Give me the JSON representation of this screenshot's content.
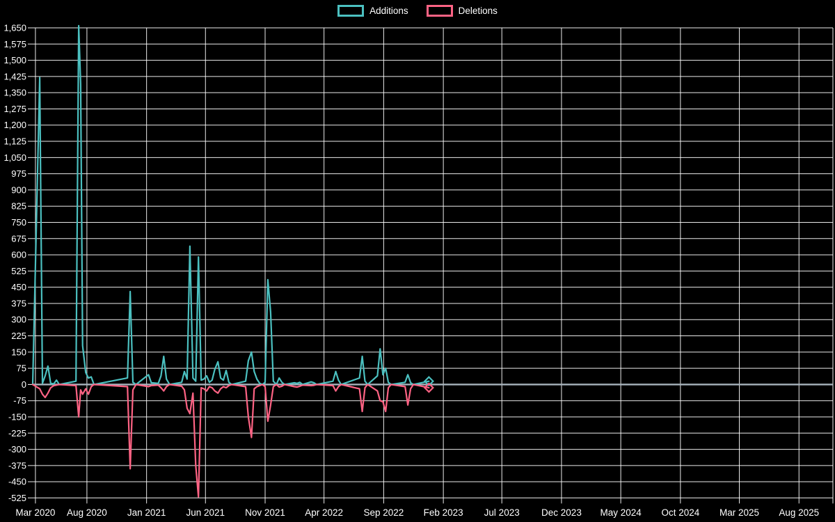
{
  "legend": {
    "additions_label": "Additions",
    "deletions_label": "Deletions"
  },
  "colors": {
    "additions": "#4bc0c0",
    "deletions": "#ff6384",
    "grid": "#ffffff",
    "zero_line": "#a8b4be",
    "background": "#000000",
    "text": "#ffffff"
  },
  "chart_data": {
    "type": "line",
    "title": "",
    "legend_position": "top-center",
    "grid": true,
    "x_axis": {
      "start": "2020-03-15",
      "end": "2025-10-27",
      "ticks": [
        {
          "label": "Mar 2020",
          "date": "2020-03-22"
        },
        {
          "label": "Aug 2020",
          "date": "2020-08-01"
        },
        {
          "label": "Jan 2021",
          "date": "2021-01-01"
        },
        {
          "label": "Jun 2021",
          "date": "2021-06-01"
        },
        {
          "label": "Nov 2021",
          "date": "2021-11-01"
        },
        {
          "label": "Apr 2022",
          "date": "2022-04-01"
        },
        {
          "label": "Sep 2022",
          "date": "2022-09-01"
        },
        {
          "label": "Feb 2023",
          "date": "2023-02-01"
        },
        {
          "label": "Jul 2023",
          "date": "2023-07-01"
        },
        {
          "label": "Dec 2023",
          "date": "2023-12-01"
        },
        {
          "label": "May 2024",
          "date": "2024-05-01"
        },
        {
          "label": "Oct 2024",
          "date": "2024-10-01"
        },
        {
          "label": "Mar 2025",
          "date": "2025-03-01"
        },
        {
          "label": "Aug 2025",
          "date": "2025-08-01"
        },
        {
          "label": "",
          "date": "2025-10-27"
        }
      ]
    },
    "y_axis": {
      "min": -525,
      "max": 1650,
      "step": 75,
      "tick_labels": [
        "1,650",
        "1,575",
        "1,500",
        "1,425",
        "1,350",
        "1,275",
        "1,200",
        "1,125",
        "1,050",
        "975",
        "900",
        "825",
        "750",
        "675",
        "600",
        "525",
        "450",
        "375",
        "300",
        "225",
        "150",
        "75",
        "0",
        "-75",
        "-150",
        "-225",
        "-300",
        "-375",
        "-450",
        "-525"
      ]
    },
    "x": [
      "2020-03-15",
      "2020-04-02",
      "2020-04-09",
      "2020-04-16",
      "2020-04-23",
      "2020-04-30",
      "2020-05-08",
      "2020-05-15",
      "2020-05-22",
      "2020-07-04",
      "2020-07-11",
      "2020-07-16",
      "2020-07-21",
      "2020-07-29",
      "2020-08-05",
      "2020-08-12",
      "2020-08-19",
      "2020-11-13",
      "2020-11-20",
      "2020-11-27",
      "2020-12-05",
      "2021-01-06",
      "2021-01-13",
      "2021-01-31",
      "2021-02-07",
      "2021-02-14",
      "2021-02-21",
      "2021-03-01",
      "2021-04-01",
      "2021-04-08",
      "2021-04-15",
      "2021-04-22",
      "2021-04-30",
      "2021-05-07",
      "2021-05-14",
      "2021-05-21",
      "2021-05-28",
      "2021-06-04",
      "2021-06-11",
      "2021-06-18",
      "2021-06-25",
      "2021-07-03",
      "2021-07-10",
      "2021-07-17",
      "2021-07-24",
      "2021-07-31",
      "2021-08-07",
      "2021-09-12",
      "2021-09-19",
      "2021-09-27",
      "2021-10-04",
      "2021-10-11",
      "2021-10-18",
      "2021-10-25",
      "2021-11-01",
      "2021-11-08",
      "2021-11-15",
      "2021-11-22",
      "2021-11-30",
      "2021-12-07",
      "2021-12-14",
      "2021-12-21",
      "2022-01-15",
      "2022-01-22",
      "2022-01-29",
      "2022-02-05",
      "2022-02-27",
      "2022-03-06",
      "2022-03-13",
      "2022-04-24",
      "2022-05-01",
      "2022-05-08",
      "2022-05-15",
      "2022-07-01",
      "2022-07-08",
      "2022-07-15",
      "2022-07-22",
      "2022-08-16",
      "2022-08-23",
      "2022-08-30",
      "2022-09-06",
      "2022-09-13",
      "2022-09-20",
      "2022-10-26",
      "2022-11-02",
      "2022-11-09",
      "2022-11-16",
      "2022-12-26"
    ],
    "series": [
      {
        "name": "Additions",
        "values": [
          0,
          1420,
          5,
          40,
          85,
          5,
          3,
          20,
          0,
          15,
          1660,
          1390,
          180,
          55,
          30,
          35,
          0,
          30,
          430,
          10,
          0,
          45,
          8,
          5,
          40,
          130,
          25,
          0,
          10,
          60,
          25,
          640,
          30,
          15,
          590,
          20,
          25,
          40,
          10,
          20,
          70,
          105,
          30,
          20,
          65,
          10,
          0,
          15,
          110,
          150,
          60,
          25,
          5,
          0,
          10,
          485,
          335,
          15,
          0,
          30,
          10,
          0,
          8,
          5,
          10,
          0,
          12,
          8,
          0,
          15,
          60,
          20,
          0,
          30,
          130,
          15,
          0,
          40,
          165,
          45,
          75,
          10,
          0,
          10,
          45,
          8,
          0,
          15
        ]
      },
      {
        "name": "Deletions",
        "values": [
          0,
          -20,
          -45,
          -60,
          -40,
          -15,
          -5,
          -3,
          0,
          -5,
          -150,
          -25,
          -45,
          -20,
          -45,
          -10,
          0,
          -10,
          -390,
          -25,
          0,
          -10,
          -5,
          -3,
          -15,
          -30,
          -10,
          0,
          -8,
          -25,
          -110,
          -135,
          -40,
          -375,
          -520,
          -15,
          -20,
          -30,
          -10,
          -15,
          -30,
          -40,
          -20,
          -10,
          -15,
          -5,
          0,
          -10,
          -150,
          -245,
          -20,
          -10,
          -5,
          0,
          -10,
          -170,
          -95,
          -10,
          0,
          -12,
          -8,
          0,
          -10,
          -12,
          -8,
          -3,
          -5,
          -4,
          0,
          -5,
          -30,
          -10,
          0,
          -20,
          -125,
          -15,
          0,
          -30,
          -75,
          -80,
          -125,
          -15,
          0,
          -10,
          -95,
          -20,
          0,
          -15
        ]
      }
    ],
    "end_markers": "diamond"
  }
}
